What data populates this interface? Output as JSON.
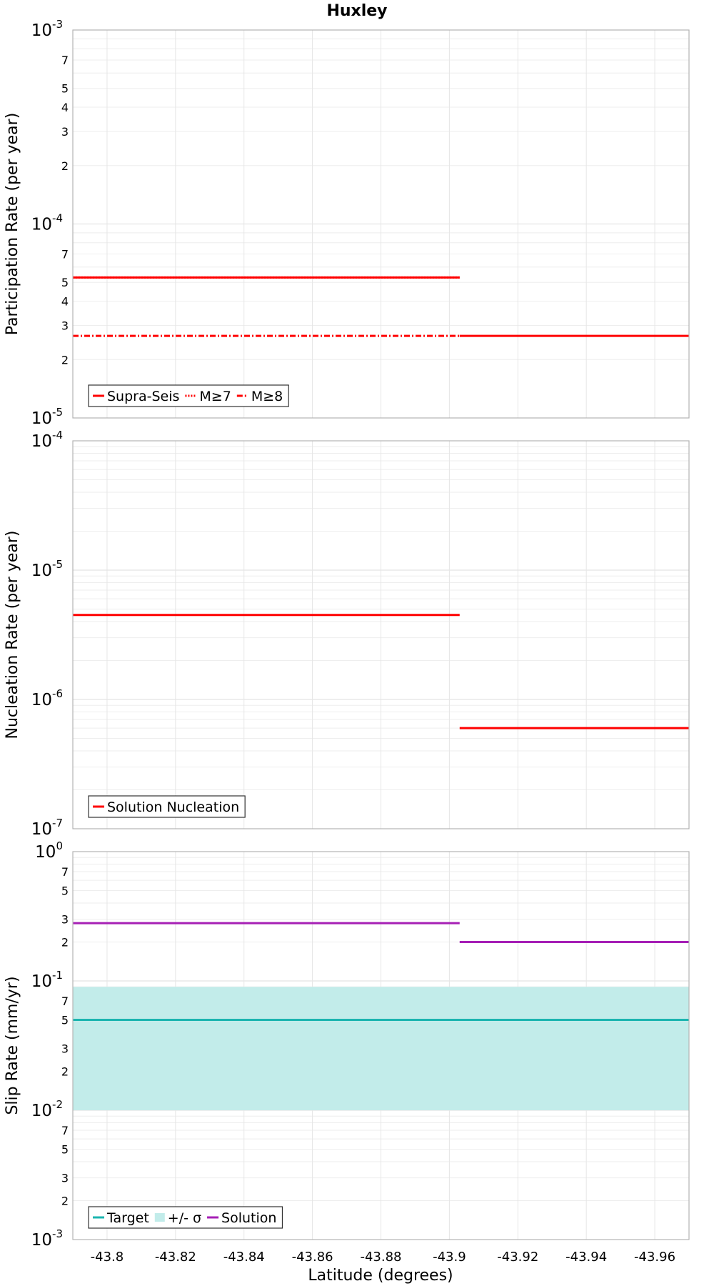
{
  "chart_data": {
    "title": "Huxley",
    "xlabel": "Latitude (degrees)",
    "xlim": [
      -43.79,
      -43.97
    ],
    "x_ticks": [
      -43.8,
      -43.82,
      -43.84,
      -43.86,
      -43.88,
      -43.9,
      -43.92,
      -43.94,
      -43.96
    ],
    "x_tick_labels": [
      "-43.8",
      "-43.82",
      "-43.84",
      "-43.86",
      "-43.88",
      "-43.9",
      "-43.92",
      "-43.94",
      "-43.96"
    ],
    "panels": [
      {
        "id": "participation",
        "type": "line",
        "ylabel": "Participation Rate (per year)",
        "yscale": "log",
        "ylim": [
          1e-05,
          0.001
        ],
        "y_major": [
          {
            "value": 1e-05,
            "base": "10",
            "exp": "-5"
          },
          {
            "value": 0.0001,
            "base": "10",
            "exp": "-4"
          },
          {
            "value": 0.001,
            "base": "10",
            "exp": "-3"
          }
        ],
        "y_minor_labels": [
          {
            "value": 2e-05,
            "label": "2"
          },
          {
            "value": 3e-05,
            "label": "3"
          },
          {
            "value": 4e-05,
            "label": "4"
          },
          {
            "value": 5e-05,
            "label": "5"
          },
          {
            "value": 7e-05,
            "label": "7"
          },
          {
            "value": 0.0002,
            "label": "2"
          },
          {
            "value": 0.0003,
            "label": "3"
          },
          {
            "value": 0.0004,
            "label": "4"
          },
          {
            "value": 0.0005,
            "label": "5"
          },
          {
            "value": 0.0007,
            "label": "7"
          }
        ],
        "legend_position": "bottom-left",
        "series": [
          {
            "name": "Supra-Seis",
            "color": "#ff0000",
            "dash": "solid",
            "segments": [
              [
                -43.79,
                -43.903,
                5.3e-05
              ],
              [
                -43.903,
                -43.97,
                2.65e-05
              ]
            ]
          },
          {
            "name": "M≥7",
            "color": "#ff0000",
            "dash": "dot",
            "segments": [
              [
                -43.79,
                -43.903,
                5.3e-05
              ]
            ]
          },
          {
            "name": "M≥8",
            "color": "#ff0000",
            "dash": "dashdot",
            "segments": [
              [
                -43.79,
                -43.903,
                2.65e-05
              ]
            ]
          }
        ]
      },
      {
        "id": "nucleation",
        "type": "line",
        "ylabel": "Nucleation Rate (per year)",
        "yscale": "log",
        "ylim": [
          1e-07,
          0.0001
        ],
        "y_major": [
          {
            "value": 1e-07,
            "base": "10",
            "exp": "-7"
          },
          {
            "value": 1e-06,
            "base": "10",
            "exp": "-6"
          },
          {
            "value": 1e-05,
            "base": "10",
            "exp": "-5"
          },
          {
            "value": 0.0001,
            "base": "10",
            "exp": "-4"
          }
        ],
        "y_minor_labels": [],
        "legend_position": "bottom-left",
        "series": [
          {
            "name": "Solution Nucleation",
            "color": "#ff0000",
            "dash": "solid",
            "segments": [
              [
                -43.79,
                -43.903,
                4.5e-06
              ],
              [
                -43.903,
                -43.97,
                6e-07
              ]
            ]
          }
        ]
      },
      {
        "id": "slip",
        "type": "line",
        "ylabel": "Slip Rate (mm/yr)",
        "yscale": "log",
        "ylim": [
          0.001,
          1
        ],
        "y_major": [
          {
            "value": 0.001,
            "base": "10",
            "exp": "-3"
          },
          {
            "value": 0.01,
            "base": "10",
            "exp": "-2"
          },
          {
            "value": 0.1,
            "base": "10",
            "exp": "-1"
          },
          {
            "value": 1,
            "base": "10",
            "exp": "0"
          }
        ],
        "y_minor_labels": [
          {
            "value": 0.002,
            "label": "2"
          },
          {
            "value": 0.003,
            "label": "3"
          },
          {
            "value": 0.005,
            "label": "5"
          },
          {
            "value": 0.007,
            "label": "7"
          },
          {
            "value": 0.02,
            "label": "2"
          },
          {
            "value": 0.03,
            "label": "3"
          },
          {
            "value": 0.05,
            "label": "5"
          },
          {
            "value": 0.07,
            "label": "7"
          },
          {
            "value": 0.2,
            "label": "2"
          },
          {
            "value": 0.3,
            "label": "3"
          },
          {
            "value": 0.5,
            "label": "5"
          },
          {
            "value": 0.7,
            "label": "7"
          }
        ],
        "legend_position": "bottom-left",
        "band": {
          "name": "+/- σ",
          "color": "#c2ecea",
          "x0": -43.79,
          "x1": -43.97,
          "y0": 0.01,
          "y1": 0.09
        },
        "series": [
          {
            "name": "Target",
            "color": "#1bb5b0",
            "dash": "solid",
            "segments": [
              [
                -43.79,
                -43.97,
                0.05
              ]
            ]
          },
          {
            "name": "Solution",
            "color": "#a61fb5",
            "dash": "solid",
            "segments": [
              [
                -43.79,
                -43.903,
                0.28
              ],
              [
                -43.903,
                -43.97,
                0.2
              ]
            ]
          }
        ]
      }
    ]
  }
}
